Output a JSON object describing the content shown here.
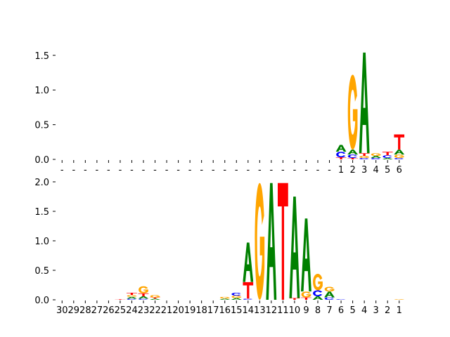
{
  "colors": {
    "A": "#008000",
    "C": "#0000ff",
    "G": "#ffa500",
    "T": "#ff0000"
  },
  "chart_data": [
    {
      "type": "sequence-logo",
      "ylim": [
        0,
        1.7
      ],
      "yticks": [
        "0.0",
        "0.5",
        "1.0",
        "1.5"
      ],
      "ytick_values": [
        0,
        0.5,
        1.0,
        1.5
      ],
      "positions": [
        "-",
        "-",
        "-",
        "-",
        "-",
        "-",
        "-",
        "-",
        "-",
        "-",
        "-",
        "-",
        "-",
        "-",
        "-",
        "-",
        "-",
        "-",
        "-",
        "-",
        "-",
        "-",
        "-",
        "-",
        "1",
        "2",
        "3",
        "4",
        "5",
        "6"
      ],
      "columns": [
        [],
        [],
        [],
        [],
        [],
        [],
        [],
        [],
        [],
        [],
        [],
        [],
        [],
        [],
        [],
        [],
        [],
        [],
        [],
        [],
        [],
        [],
        [],
        [],
        [
          {
            "b": "T",
            "h": 0.03
          },
          {
            "b": "C",
            "h": 0.08
          },
          {
            "b": "A",
            "h": 0.1
          }
        ],
        [
          {
            "b": "T",
            "h": 0.02
          },
          {
            "b": "C",
            "h": 0.05
          },
          {
            "b": "A",
            "h": 0.07
          },
          {
            "b": "G",
            "h": 1.08
          }
        ],
        [
          {
            "b": "C",
            "h": 0.02
          },
          {
            "b": "G",
            "h": 0.03
          },
          {
            "b": "T",
            "h": 0.04
          },
          {
            "b": "A",
            "h": 1.45
          }
        ],
        [
          {
            "b": "C",
            "h": 0.02
          },
          {
            "b": "A",
            "h": 0.03
          },
          {
            "b": "G",
            "h": 0.04
          }
        ],
        [
          {
            "b": "A",
            "h": 0.02
          },
          {
            "b": "C",
            "h": 0.04
          },
          {
            "b": "T",
            "h": 0.05
          }
        ],
        [
          {
            "b": "C",
            "h": 0.02
          },
          {
            "b": "G",
            "h": 0.05
          },
          {
            "b": "A",
            "h": 0.07
          },
          {
            "b": "T",
            "h": 0.22
          }
        ]
      ]
    },
    {
      "type": "sequence-logo",
      "ylim": [
        0,
        2.0
      ],
      "yticks": [
        "0.0",
        "0.5",
        "1.0",
        "1.5",
        "2.0"
      ],
      "ytick_values": [
        0,
        0.5,
        1.0,
        1.5,
        2.0
      ],
      "positions": [
        "30",
        "29",
        "28",
        "27",
        "26",
        "25",
        "24",
        "23",
        "22",
        "21",
        "20",
        "19",
        "18",
        "17",
        "16",
        "15",
        "14",
        "13",
        "12",
        "11",
        "10",
        "9",
        "8",
        "7",
        "6",
        "5",
        "4",
        "3",
        "2",
        "1"
      ],
      "columns": [
        [],
        [],
        [],
        [],
        [],
        [
          {
            "b": "T",
            "h": 0.01
          }
        ],
        [
          {
            "b": "C",
            "h": 0.02
          },
          {
            "b": "A",
            "h": 0.03
          },
          {
            "b": "G",
            "h": 0.03
          },
          {
            "b": "T",
            "h": 0.04
          }
        ],
        [
          {
            "b": "C",
            "h": 0.02
          },
          {
            "b": "A",
            "h": 0.04
          },
          {
            "b": "T",
            "h": 0.05
          },
          {
            "b": "G",
            "h": 0.12
          }
        ],
        [
          {
            "b": "A",
            "h": 0.02
          },
          {
            "b": "T",
            "h": 0.02
          },
          {
            "b": "G",
            "h": 0.04
          }
        ],
        [],
        [],
        [],
        [],
        [],
        [
          {
            "b": "A",
            "h": 0.02
          },
          {
            "b": "G",
            "h": 0.03
          }
        ],
        [
          {
            "b": "A",
            "h": 0.03
          },
          {
            "b": "G",
            "h": 0.04
          },
          {
            "b": "C",
            "h": 0.05
          }
        ],
        [
          {
            "b": "C",
            "h": 0.02
          },
          {
            "b": "T",
            "h": 0.28
          },
          {
            "b": "A",
            "h": 0.67
          }
        ],
        [
          {
            "b": "G",
            "h": 1.98
          }
        ],
        [
          {
            "b": "A",
            "h": 1.98
          }
        ],
        [
          {
            "b": "T",
            "h": 1.98
          }
        ],
        [
          {
            "b": "T",
            "h": 0.03
          },
          {
            "b": "A",
            "h": 1.72
          }
        ],
        [
          {
            "b": "T",
            "h": 0.04
          },
          {
            "b": "G",
            "h": 0.1
          },
          {
            "b": "A",
            "h": 1.24
          }
        ],
        [
          {
            "b": "A",
            "h": 0.06
          },
          {
            "b": "C",
            "h": 0.1
          },
          {
            "b": "G",
            "h": 0.28
          }
        ],
        [
          {
            "b": "C",
            "h": 0.04
          },
          {
            "b": "A",
            "h": 0.1
          },
          {
            "b": "G",
            "h": 0.08
          }
        ],
        [
          {
            "b": "C",
            "h": 0.01
          }
        ],
        [],
        [],
        [],
        [],
        [
          {
            "b": "G",
            "h": 0.01
          }
        ]
      ]
    }
  ]
}
